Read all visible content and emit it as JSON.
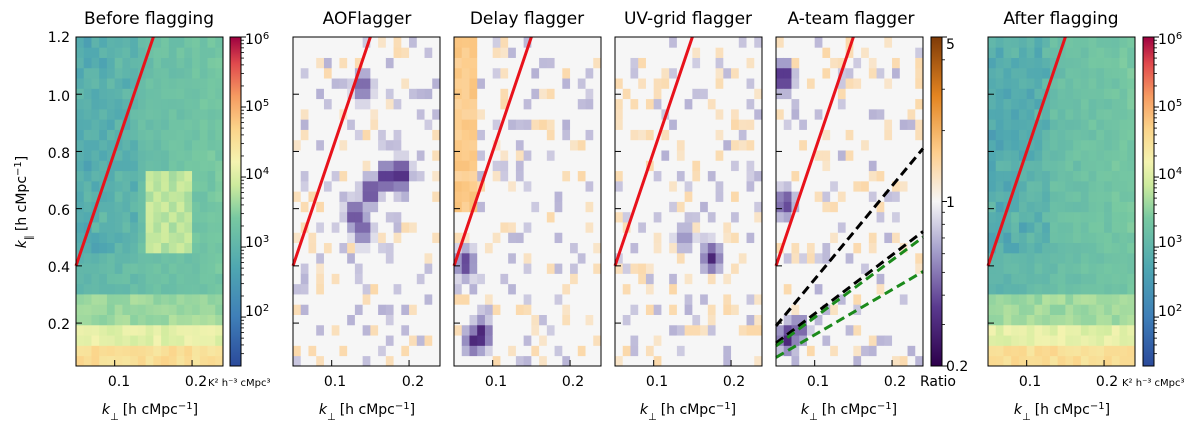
{
  "figure": {
    "ylabel_main": "k",
    "ylabel_sub": "∥",
    "ylabel_unit": "[h cMpc",
    "ylabel_exp": "−1",
    "ylabel_close": "]",
    "xlabel_main": "k",
    "xlabel_sub": "⊥",
    "xlabel_unit": "[h cMpc",
    "xlabel_exp": "−1",
    "xlabel_close": "]",
    "colorbar_power_label": "K² h⁻³ cMpc³",
    "colorbar_ratio_label": "Ratio",
    "colors": {
      "wedge_line": "#e8121b",
      "ateam_black": "#000000",
      "ateam_green": "#1b8a1b"
    }
  },
  "chart_data": [
    {
      "type": "heatmap",
      "name": "before",
      "title": "Before flagging",
      "x_ticks": [
        "0.1",
        "0.2"
      ],
      "x_tick_values": [
        0.1,
        0.2
      ],
      "xlim": [
        0.05,
        0.24
      ],
      "y_ticks": [
        "0.2",
        "0.4",
        "0.6",
        "0.8",
        "1.0",
        "1.2"
      ],
      "y_tick_values": [
        0.2,
        0.4,
        0.6,
        0.8,
        1.0,
        1.2
      ],
      "ylim": [
        0.05,
        1.2
      ],
      "colormap": "power",
      "wedge_slope": 8.0,
      "ateam_lines": []
    },
    {
      "type": "heatmap",
      "name": "aoflagger",
      "title": "AOFlagger",
      "x_ticks": [
        "0.1",
        "0.2"
      ],
      "x_tick_values": [
        0.1,
        0.2
      ],
      "xlim": [
        0.05,
        0.24
      ],
      "ylim": [
        0.05,
        1.2
      ],
      "colormap": "ratio",
      "wedge_slope": 8.0,
      "ateam_lines": [],
      "hotspots": [
        {
          "kperp": 0.17,
          "kpar": 0.71,
          "ratio": 0.25
        },
        {
          "kperp": 0.19,
          "kpar": 0.72,
          "ratio": 0.22
        },
        {
          "kperp": 0.15,
          "kpar": 0.66,
          "ratio": 0.28
        },
        {
          "kperp": 0.13,
          "kpar": 0.58,
          "ratio": 0.3
        },
        {
          "kperp": 0.14,
          "kpar": 0.53,
          "ratio": 0.35
        },
        {
          "kperp": 0.14,
          "kpar": 1.03,
          "ratio": 0.35
        }
      ]
    },
    {
      "type": "heatmap",
      "name": "delay",
      "title": "Delay flagger",
      "x_ticks": [
        "0.1",
        "0.2"
      ],
      "x_tick_values": [
        0.1,
        0.2
      ],
      "xlim": [
        0.05,
        0.24
      ],
      "ylim": [
        0.05,
        1.2
      ],
      "colormap": "ratio",
      "wedge_slope": 8.0,
      "ateam_lines": [],
      "hotspots": [
        {
          "kperp": 0.085,
          "kpar": 0.16,
          "ratio": 0.22
        },
        {
          "kperp": 0.075,
          "kpar": 0.14,
          "ratio": 0.3
        },
        {
          "kperp": 0.065,
          "kpar": 0.41,
          "ratio": 0.3
        }
      ]
    },
    {
      "type": "heatmap",
      "name": "uvgrid",
      "title": "UV-grid flagger",
      "x_ticks": [
        "0.1",
        "0.2"
      ],
      "x_tick_values": [
        0.1,
        0.2
      ],
      "xlim": [
        0.05,
        0.24
      ],
      "ylim": [
        0.05,
        1.2
      ],
      "colormap": "ratio",
      "wedge_slope": 8.0,
      "ateam_lines": [],
      "hotspots": [
        {
          "kperp": 0.175,
          "kpar": 0.43,
          "ratio": 0.28
        },
        {
          "kperp": 0.14,
          "kpar": 0.5,
          "ratio": 0.5
        }
      ]
    },
    {
      "type": "heatmap",
      "name": "ateam",
      "title": "A-team flagger",
      "x_ticks": [
        "0.1",
        "0.2"
      ],
      "x_tick_values": [
        0.1,
        0.2
      ],
      "xlim": [
        0.05,
        0.24
      ],
      "ylim": [
        0.05,
        1.2
      ],
      "colormap": "ratio",
      "wedge_slope": 8.0,
      "ateam_lines": [
        {
          "color": "black",
          "points": [
            [
              0.05,
              0.19
            ],
            [
              0.24,
              0.81
            ]
          ]
        },
        {
          "color": "black",
          "points": [
            [
              0.05,
              0.13
            ],
            [
              0.24,
              0.52
            ]
          ]
        },
        {
          "color": "green",
          "points": [
            [
              0.05,
              0.12
            ],
            [
              0.24,
              0.5
            ]
          ]
        },
        {
          "color": "green",
          "points": [
            [
              0.05,
              0.08
            ],
            [
              0.24,
              0.38
            ]
          ]
        }
      ],
      "hotspots": [
        {
          "kperp": 0.06,
          "kpar": 1.06,
          "ratio": 0.22
        },
        {
          "kperp": 0.062,
          "kpar": 0.62,
          "ratio": 0.3
        },
        {
          "kperp": 0.065,
          "kpar": 0.15,
          "ratio": 0.25
        },
        {
          "kperp": 0.08,
          "kpar": 0.18,
          "ratio": 0.35
        }
      ]
    },
    {
      "type": "heatmap",
      "name": "after",
      "title": "After flagging",
      "x_ticks": [
        "0.1",
        "0.2"
      ],
      "x_tick_values": [
        0.1,
        0.2
      ],
      "xlim": [
        0.05,
        0.24
      ],
      "ylim": [
        0.05,
        1.2
      ],
      "colormap": "power",
      "wedge_slope": 8.0,
      "ateam_lines": []
    }
  ],
  "colorbars": {
    "power": {
      "scale": "log",
      "range": [
        20,
        1000000
      ],
      "tick_values": [
        100,
        1000,
        10000,
        100000,
        1000000
      ],
      "ticks": [
        "10",
        "10",
        "10",
        "10",
        "10"
      ],
      "tick_exps": [
        "2",
        "3",
        "4",
        "5",
        "6"
      ]
    },
    "ratio": {
      "scale": "log",
      "range": [
        0.2,
        5
      ],
      "tick_values": [
        0.2,
        1,
        5
      ],
      "ticks": [
        "0.2",
        "1",
        "5"
      ]
    }
  }
}
